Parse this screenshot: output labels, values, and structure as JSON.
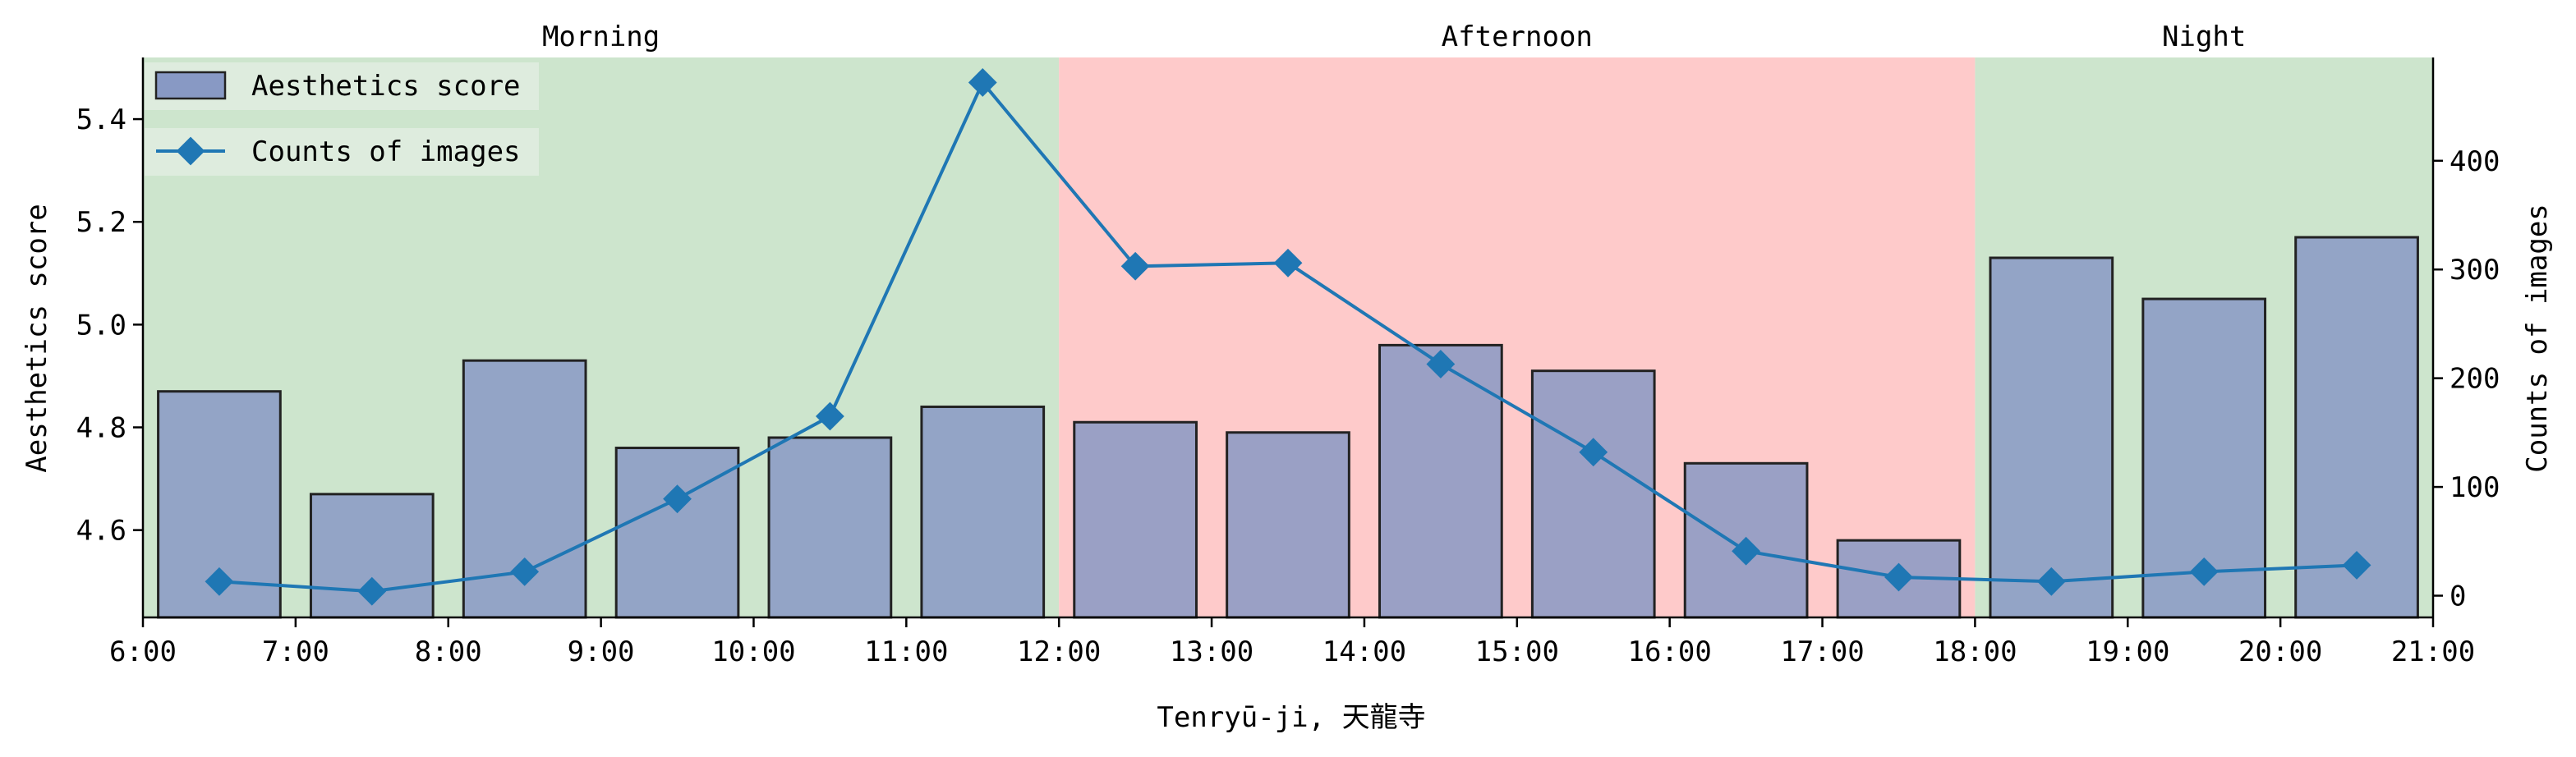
{
  "chart_data": {
    "type": "bar",
    "xlabel": "Tenryū-ji, 天龍寺",
    "ylabel_left": "Aesthetics score",
    "ylabel_right": "Counts of images",
    "x_ticks": [
      "6:00",
      "7:00",
      "8:00",
      "9:00",
      "10:00",
      "11:00",
      "12:00",
      "13:00",
      "14:00",
      "15:00",
      "16:00",
      "17:00",
      "18:00",
      "19:00",
      "20:00",
      "21:00"
    ],
    "x_range": [
      6,
      21
    ],
    "ylim_left": [
      4.43,
      5.52
    ],
    "yticks_left": [
      "4.6",
      "4.8",
      "5.0",
      "5.2",
      "5.4"
    ],
    "ylim_right": [
      -20,
      495
    ],
    "yticks_right": [
      "0",
      "100",
      "200",
      "300",
      "400"
    ],
    "periods": [
      {
        "label": "Morning",
        "start": 6,
        "end": 12,
        "color": "#cde5cd"
      },
      {
        "label": "Afternoon",
        "start": 12,
        "end": 18,
        "color": "#fecaca"
      },
      {
        "label": "Night",
        "start": 18,
        "end": 21,
        "color": "#cde5cd"
      }
    ],
    "x": [
      6.5,
      7.5,
      8.5,
      9.5,
      10.5,
      11.5,
      12.5,
      13.5,
      14.5,
      15.5,
      16.5,
      17.5,
      18.5,
      19.5,
      20.5
    ],
    "series": [
      {
        "name": "Aesthetics score",
        "type": "bar",
        "color": "#8899c4",
        "values": [
          4.87,
          4.67,
          4.93,
          4.76,
          4.78,
          4.84,
          4.81,
          4.79,
          4.96,
          4.91,
          4.73,
          4.58,
          5.13,
          5.05,
          5.17
        ]
      },
      {
        "name": "Counts of images",
        "type": "line",
        "color": "#1f77b4",
        "values": [
          13,
          4,
          22,
          89,
          165,
          472,
          303,
          306,
          213,
          132,
          41,
          17,
          13,
          22,
          28
        ]
      }
    ],
    "legend_position": "top-left",
    "grid": false
  }
}
